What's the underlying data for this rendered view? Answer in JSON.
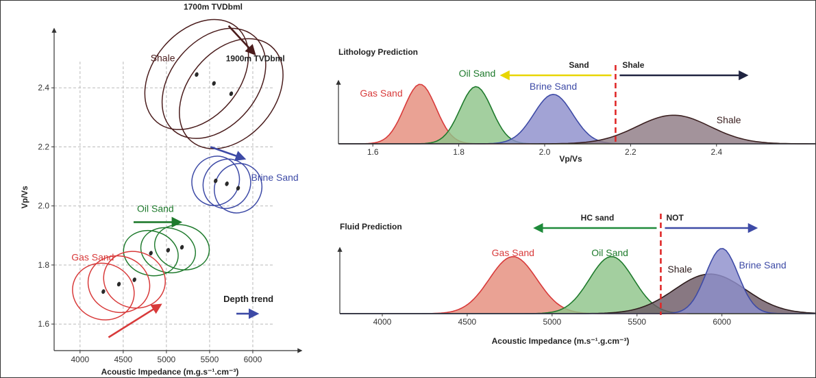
{
  "chart_data": [
    {
      "type": "scatter",
      "title": "",
      "xlabel": "Acoustic Impedance (m.g.s⁻¹.cm⁻³)",
      "ylabel": "Vp/Vs",
      "xlim": [
        3700,
        6500
      ],
      "ylim": [
        1.51,
        2.6
      ],
      "xticks": [
        "4000",
        "4500",
        "5000",
        "5500",
        "6000"
      ],
      "yticks": [
        "1.6",
        "1.8",
        "2.0",
        "2.2",
        "2.4"
      ],
      "grid": true,
      "groups": [
        {
          "label": "Shale",
          "color": "#4a1c1c",
          "points": [
            {
              "x": 5350,
              "y": 2.445
            },
            {
              "x": 5550,
              "y": 2.415
            },
            {
              "x": 5750,
              "y": 2.38
            }
          ],
          "ellipse_width": 1000,
          "ellipse_height": 0.42,
          "tilt_deg": 40
        },
        {
          "label": "Brine Sand",
          "color": "#3d4aa6",
          "points": [
            {
              "x": 5570,
              "y": 2.085
            },
            {
              "x": 5700,
              "y": 2.075
            },
            {
              "x": 5830,
              "y": 2.06
            }
          ],
          "ellipse_width": 540,
          "ellipse_height": 0.17,
          "tilt_deg": 30
        },
        {
          "label": "Oil Sand",
          "color": "#1e7a2c",
          "points": [
            {
              "x": 4820,
              "y": 1.84
            },
            {
              "x": 5020,
              "y": 1.85
            },
            {
              "x": 5180,
              "y": 1.86
            }
          ],
          "ellipse_width": 640,
          "ellipse_height": 0.15,
          "tilt_deg": 15
        },
        {
          "label": "Gas Sand",
          "color": "#d83a3a",
          "points": [
            {
              "x": 4270,
              "y": 1.71
            },
            {
              "x": 4450,
              "y": 1.735
            },
            {
              "x": 4630,
              "y": 1.75
            }
          ],
          "ellipse_width": 720,
          "ellipse_height": 0.19,
          "tilt_deg": 18
        }
      ],
      "annotations": [
        {
          "text": "1700m TVDbml",
          "x": 5540,
          "y": 2.665
        },
        {
          "text": "1900m TVDbml",
          "x": 6030,
          "y": 2.49
        },
        {
          "text": "Depth trend",
          "x": 5950,
          "y": 1.675
        }
      ],
      "arrows": [
        {
          "color": "#4a1c1c",
          "from": [
            5720,
            2.61
          ],
          "to": [
            6020,
            2.515
          ]
        },
        {
          "color": "#3d4aa6",
          "from": [
            5510,
            2.2
          ],
          "to": [
            5900,
            2.16
          ]
        },
        {
          "color": "#1e7a2c",
          "from": [
            4620,
            1.945
          ],
          "to": [
            5160,
            1.945
          ]
        },
        {
          "color": "#d83a3a",
          "from": [
            4330,
            1.555
          ],
          "to": [
            4930,
            1.665
          ]
        },
        {
          "color": "#3d4aa6",
          "from": [
            5810,
            1.635
          ],
          "to": [
            6050,
            1.635
          ]
        }
      ]
    },
    {
      "type": "area",
      "title": "Lithology Prediction",
      "xlabel": "Vp/Vs",
      "ylabel": "",
      "xlim": [
        1.52,
        2.63
      ],
      "xticks": [
        "1.6",
        "1.8",
        "2.0",
        "2.2",
        "2.4"
      ],
      "series": [
        {
          "name": "Gas Sand",
          "mean": 1.71,
          "sd": 0.037,
          "peak": 1.0,
          "color": "#d83a3a",
          "fill": "#e58d7c"
        },
        {
          "name": "Oil Sand",
          "mean": 1.84,
          "sd": 0.037,
          "peak": 0.96,
          "color": "#1e7a2c",
          "fill": "#8fc48a"
        },
        {
          "name": "Brine Sand",
          "mean": 2.02,
          "sd": 0.045,
          "peak": 0.83,
          "color": "#3d4aa6",
          "fill": "#8d8fcc"
        },
        {
          "name": "Shale",
          "mean": 2.3,
          "sd": 0.085,
          "peak": 0.48,
          "color": "#3b2020",
          "fill": "#8f7b85"
        }
      ],
      "cutoff": 2.165,
      "cutoff_labels": {
        "left": "Sand",
        "right": "Shale"
      },
      "arrows": [
        {
          "color": "#e8d600",
          "from": 2.165,
          "to": 1.9
        },
        {
          "color": "#1f2340",
          "from": 2.165,
          "to": 2.47
        }
      ]
    },
    {
      "type": "area",
      "title": "Fluid Prediction",
      "xlabel": "Acoustic Impedance (m.s⁻¹.g.cm⁻³)",
      "ylabel": "",
      "xlim": [
        3750,
        6550
      ],
      "xticks": [
        "4000",
        "4500",
        "5000",
        "5500",
        "6000"
      ],
      "series": [
        {
          "name": "Gas Sand",
          "mean": 4770,
          "sd": 140,
          "peak": 0.98,
          "color": "#d83a3a",
          "fill": "#e58d7c"
        },
        {
          "name": "Oil Sand",
          "mean": 5350,
          "sd": 130,
          "peak": 0.98,
          "color": "#1e7a2c",
          "fill": "#8fc48a"
        },
        {
          "name": "Shale",
          "mean": 5930,
          "sd": 210,
          "peak": 0.68,
          "color": "#2e1c1c",
          "fill": "#6e5a66"
        },
        {
          "name": "Brine Sand",
          "mean": 6000,
          "sd": 95,
          "peak": 1.12,
          "color": "#3d4aa6",
          "fill": "#8d8fcc"
        }
      ],
      "cutoff": 5640,
      "cutoff_labels": {
        "left": "HC sand",
        "right": "NOT"
      },
      "arrows": [
        {
          "color": "#1e8a3a",
          "from": 5640,
          "to": 4900
        },
        {
          "color": "#3d4aa6",
          "from": 5640,
          "to": 6200
        }
      ]
    }
  ]
}
